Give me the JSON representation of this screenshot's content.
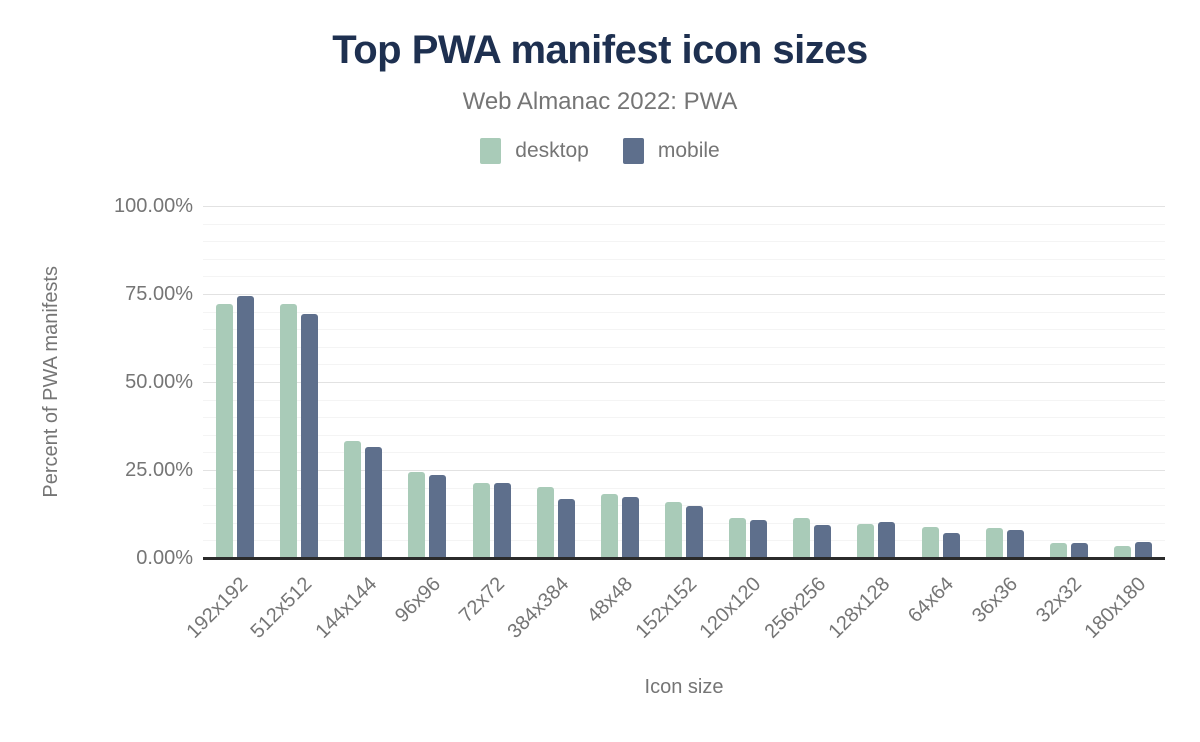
{
  "chart_data": {
    "type": "bar",
    "title": "Top PWA manifest icon sizes",
    "subtitle": "Web Almanac 2022: PWA",
    "xlabel": "Icon size",
    "ylabel": "Percent of PWA manifests",
    "categories": [
      "192x192",
      "512x512",
      "144x144",
      "96x96",
      "72x72",
      "384x384",
      "48x48",
      "152x152",
      "120x120",
      "256x256",
      "128x128",
      "64x64",
      "36x36",
      "32x32",
      "180x180"
    ],
    "series": [
      {
        "name": "desktop",
        "color": "#a9cbb8",
        "values": [
          72.1,
          72.2,
          33.3,
          24.4,
          21.3,
          20.3,
          18.1,
          15.9,
          11.4,
          11.4,
          9.7,
          8.8,
          8.6,
          4.4,
          3.3
        ]
      },
      {
        "name": "mobile",
        "color": "#5e6f8c",
        "values": [
          74.3,
          69.2,
          31.5,
          23.5,
          21.4,
          16.7,
          17.4,
          14.7,
          10.8,
          9.5,
          10.1,
          7.1,
          7.9,
          4.4,
          4.5
        ]
      }
    ],
    "ylim": [
      0,
      100
    ],
    "ytick_labels": [
      "0.00%",
      "25.00%",
      "50.00%",
      "75.00%",
      "100.00%"
    ],
    "ytick_step_major": 25,
    "ytick_step_minor": 5,
    "grid": true,
    "legend_position": "top",
    "value_unit": "%",
    "colors": {
      "title": "#1e3050",
      "axis_text": "#757575",
      "gridline_major": "#e2e2e2",
      "gridline_minor": "#f4f4f4",
      "zero_axis": "#2b2b2b",
      "background": "#ffffff"
    }
  }
}
